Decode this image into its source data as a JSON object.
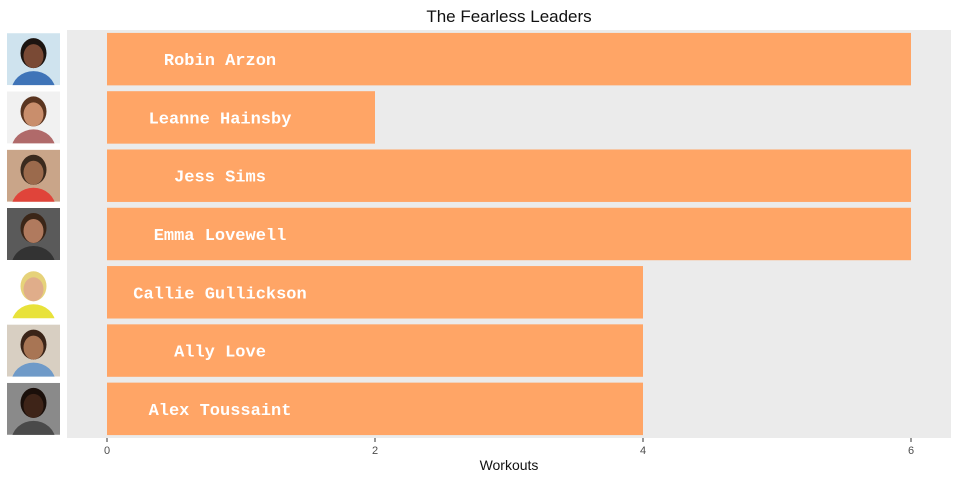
{
  "chart_data": {
    "type": "bar",
    "orientation": "horizontal",
    "title": "The Fearless Leaders",
    "xlabel": "Workouts",
    "ylabel": "",
    "xlim": [
      0,
      6.3
    ],
    "xticks": [
      0,
      2,
      4,
      6
    ],
    "grid": false,
    "legend": "none",
    "categories": [
      "Robin Arzon",
      "Leanne Hainsby",
      "Jess Sims",
      "Emma Lovewell",
      "Callie Gullickson",
      "Ally Love",
      "Alex Toussaint"
    ],
    "values": [
      6,
      2,
      6,
      6,
      4,
      4,
      4
    ],
    "colors": {
      "bar": "#FFA566",
      "panel": "#EBEBEB",
      "tick": "#333333"
    },
    "avatars": [
      {
        "name": "Robin Arzon",
        "bg": "#cfe3ee",
        "skin": "#7a4a35",
        "hair": "#1c1410",
        "shirt": "#3f74b8"
      },
      {
        "name": "Leanne Hainsby",
        "bg": "#f1f1f1",
        "skin": "#c98e6c",
        "hair": "#5a3520",
        "shirt": "#b06a6a"
      },
      {
        "name": "Jess Sims",
        "bg": "#c9a589",
        "skin": "#9b6a4c",
        "hair": "#3a2a1e",
        "shirt": "#e0443a"
      },
      {
        "name": "Emma Lovewell",
        "bg": "#5a5a5a",
        "skin": "#b07a5e",
        "hair": "#3b2618",
        "shirt": "#333333"
      },
      {
        "name": "Callie Gullickson",
        "bg": "#ffffff",
        "skin": "#e0ad8a",
        "hair": "#e6d27a",
        "shirt": "#e8e23a"
      },
      {
        "name": "Ally Love",
        "bg": "#d8cfc2",
        "skin": "#a87554",
        "hair": "#3a2418",
        "shirt": "#6f9ac8"
      },
      {
        "name": "Alex Toussaint",
        "bg": "#8a8a8a",
        "skin": "#3e2418",
        "hair": "#1a0f0a",
        "shirt": "#4a4a4a"
      }
    ]
  }
}
